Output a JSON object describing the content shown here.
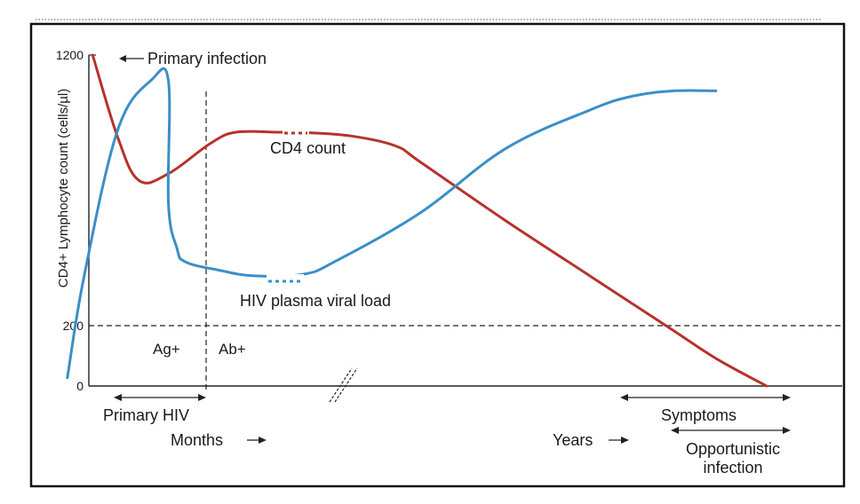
{
  "chart_data": {
    "type": "line",
    "ylabel": "CD4+ Lymphocyte count (cells/µl)",
    "yticks": [
      0,
      200,
      1200
    ],
    "ylim": [
      0,
      1200
    ],
    "threshold": 200,
    "series": [
      {
        "name": "CD4 count",
        "color": "#b5332b",
        "points": [
          [
            0.11,
            1200
          ],
          [
            0.14,
            900
          ],
          [
            0.165,
            745
          ],
          [
            0.2,
            770
          ],
          [
            0.25,
            880
          ],
          [
            0.28,
            920
          ],
          [
            0.33,
            920
          ],
          [
            0.37,
            918
          ],
          [
            0.42,
            905
          ],
          [
            0.47,
            870
          ],
          [
            0.5,
            810
          ],
          [
            0.6,
            600
          ],
          [
            0.7,
            400
          ],
          [
            0.8,
            200
          ],
          [
            0.85,
            100
          ],
          [
            0.91,
            0
          ]
        ]
      },
      {
        "name": "HIV plasma viral load",
        "color": "#3a8fc7",
        "points": [
          [
            0.08,
            30
          ],
          [
            0.1,
            400
          ],
          [
            0.14,
            930
          ],
          [
            0.18,
            1110
          ],
          [
            0.2,
            1105
          ],
          [
            0.2,
            660
          ],
          [
            0.21,
            500
          ],
          [
            0.22,
            450
          ],
          [
            0.26,
            420
          ],
          [
            0.3,
            400
          ],
          [
            0.36,
            405
          ],
          [
            0.4,
            455
          ],
          [
            0.5,
            630
          ],
          [
            0.6,
            860
          ],
          [
            0.7,
            1000
          ],
          [
            0.75,
            1050
          ],
          [
            0.8,
            1070
          ],
          [
            0.85,
            1070
          ]
        ]
      }
    ],
    "annotations": {
      "primary_infection": "Primary infection",
      "cd4_count": "CD4 count",
      "viral_load": "HIV plasma viral load",
      "ag": "Ag+",
      "ab": "Ab+",
      "primary_hiv": "Primary HIV",
      "months": "Months",
      "years": "Years",
      "symptoms": "Symptoms",
      "opportunistic": "Opportunistic",
      "infection": "infection"
    }
  }
}
